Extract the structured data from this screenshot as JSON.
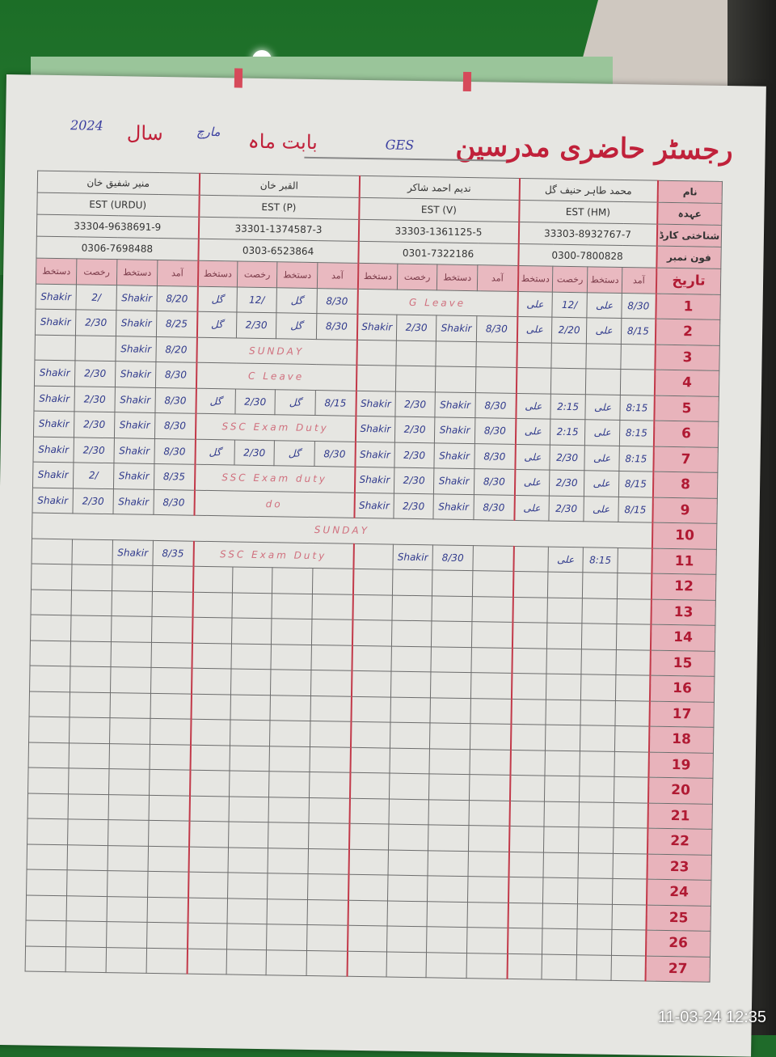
{
  "register": {
    "title": "رجسٹر حاضری مدرسین",
    "school_label": "GES",
    "month_label": "بابت ماہ",
    "month_value": "مارچ",
    "year_label": "سال",
    "year_value": "2024"
  },
  "row_labels": {
    "name": "نام",
    "designation": "عہدہ",
    "cnic": "شناختی کارڈ",
    "phone": "فون نمبر",
    "date": "تاریخ"
  },
  "sub_headers": [
    "دستخط",
    "رخصت",
    "دستخط",
    "آمد"
  ],
  "teachers": [
    {
      "name": "منیر شفیق خان",
      "designation": "EST (URDU)",
      "cnic": "33304-9638691-9",
      "phone": "0306-7698488"
    },
    {
      "name": "القبر خان",
      "designation": "EST (P)",
      "cnic": "33301-1374587-3",
      "phone": "0303-6523864"
    },
    {
      "name": "ندیم احمد شاکر",
      "designation": "EST (V)",
      "cnic": "33303-1361125-5",
      "phone": "0301-7322186"
    },
    {
      "name": "محمد طاہر حنیف گل",
      "designation": "EST (HM)",
      "cnic": "33303-8932767-7",
      "phone": "0300-7800828"
    }
  ],
  "rows": [
    {
      "day": "1",
      "cells": [
        [
          "Shakir",
          "2/",
          "Shakir",
          "8/20"
        ],
        [
          "گل",
          "12/",
          "گل",
          "8/30"
        ],
        [
          "G Leave"
        ],
        [
          "علی",
          "12/",
          "علی",
          "8/30"
        ]
      ]
    },
    {
      "day": "2",
      "cells": [
        [
          "Shakir",
          "2/30",
          "Shakir",
          "8/25"
        ],
        [
          "گل",
          "2/30",
          "گل",
          "8/30"
        ],
        [
          "Shakir",
          "2/30",
          "Shakir",
          "8/30"
        ],
        [
          "علی",
          "2/20",
          "علی",
          "8/15"
        ]
      ]
    },
    {
      "day": "3",
      "cells": [
        [
          "",
          "",
          "Shakir",
          "8/20"
        ],
        [
          "SUNDAY"
        ],
        [
          "",
          "",
          "",
          ""
        ],
        [
          "",
          "",
          "",
          ""
        ]
      ]
    },
    {
      "day": "4",
      "cells": [
        [
          "Shakir",
          "2/30",
          "Shakir",
          "8/30"
        ],
        [
          "C Leave"
        ],
        [
          "",
          "",
          "",
          ""
        ],
        [
          "",
          "",
          "",
          ""
        ]
      ]
    },
    {
      "day": "5",
      "cells": [
        [
          "Shakir",
          "2/30",
          "Shakir",
          "8/30"
        ],
        [
          "گل",
          "2/30",
          "گل",
          "8/15"
        ],
        [
          "Shakir",
          "2/30",
          "Shakir",
          "8/30"
        ],
        [
          "علی",
          "2:15",
          "علی",
          "8:15"
        ]
      ]
    },
    {
      "day": "6",
      "cells": [
        [
          "Shakir",
          "2/30",
          "Shakir",
          "8/30"
        ],
        [
          "SSC Exam Duty"
        ],
        [
          "Shakir",
          "2/30",
          "Shakir",
          "8/30"
        ],
        [
          "علی",
          "2:15",
          "علی",
          "8:15"
        ]
      ]
    },
    {
      "day": "7",
      "cells": [
        [
          "Shakir",
          "2/30",
          "Shakir",
          "8/30"
        ],
        [
          "گل",
          "2/30",
          "گل",
          "8/30"
        ],
        [
          "Shakir",
          "2/30",
          "Shakir",
          "8/30"
        ],
        [
          "علی",
          "2/30",
          "علی",
          "8:15"
        ]
      ]
    },
    {
      "day": "8",
      "cells": [
        [
          "Shakir",
          "2/",
          "Shakir",
          "8/35"
        ],
        [
          "SSC Exam duty"
        ],
        [
          "Shakir",
          "2/30",
          "Shakir",
          "8/30"
        ],
        [
          "علی",
          "2/30",
          "علی",
          "8/15"
        ]
      ]
    },
    {
      "day": "9",
      "cells": [
        [
          "Shakir",
          "2/30",
          "Shakir",
          "8/30"
        ],
        [
          "do"
        ],
        [
          "Shakir",
          "2/30",
          "Shakir",
          "8/30"
        ],
        [
          "علی",
          "2/30",
          "علی",
          "8/15"
        ]
      ]
    },
    {
      "day": "10",
      "cells": [
        [
          "SUNDAY"
        ]
      ]
    },
    {
      "day": "11",
      "cells": [
        [
          "",
          "",
          "Shakir",
          "8/35"
        ],
        [
          "SSC Exam Duty"
        ],
        [
          "",
          "Shakir",
          "8/30",
          ""
        ],
        [
          "",
          "علی",
          "8:15",
          ""
        ]
      ]
    },
    {
      "day": "12"
    },
    {
      "day": "13"
    },
    {
      "day": "14"
    },
    {
      "day": "15"
    },
    {
      "day": "16"
    },
    {
      "day": "17"
    },
    {
      "day": "18"
    },
    {
      "day": "19"
    },
    {
      "day": "20"
    },
    {
      "day": "21"
    },
    {
      "day": "22"
    },
    {
      "day": "23"
    },
    {
      "day": "24"
    },
    {
      "day": "25"
    },
    {
      "day": "26"
    },
    {
      "day": "27"
    }
  ],
  "camera_timestamp": "11-03-24  12:35",
  "colors": {
    "heading_red": "#c0213a",
    "column_pink": "#e8b3bb",
    "ink_blue": "#303a8c",
    "background_green": "#1f6b2a"
  }
}
